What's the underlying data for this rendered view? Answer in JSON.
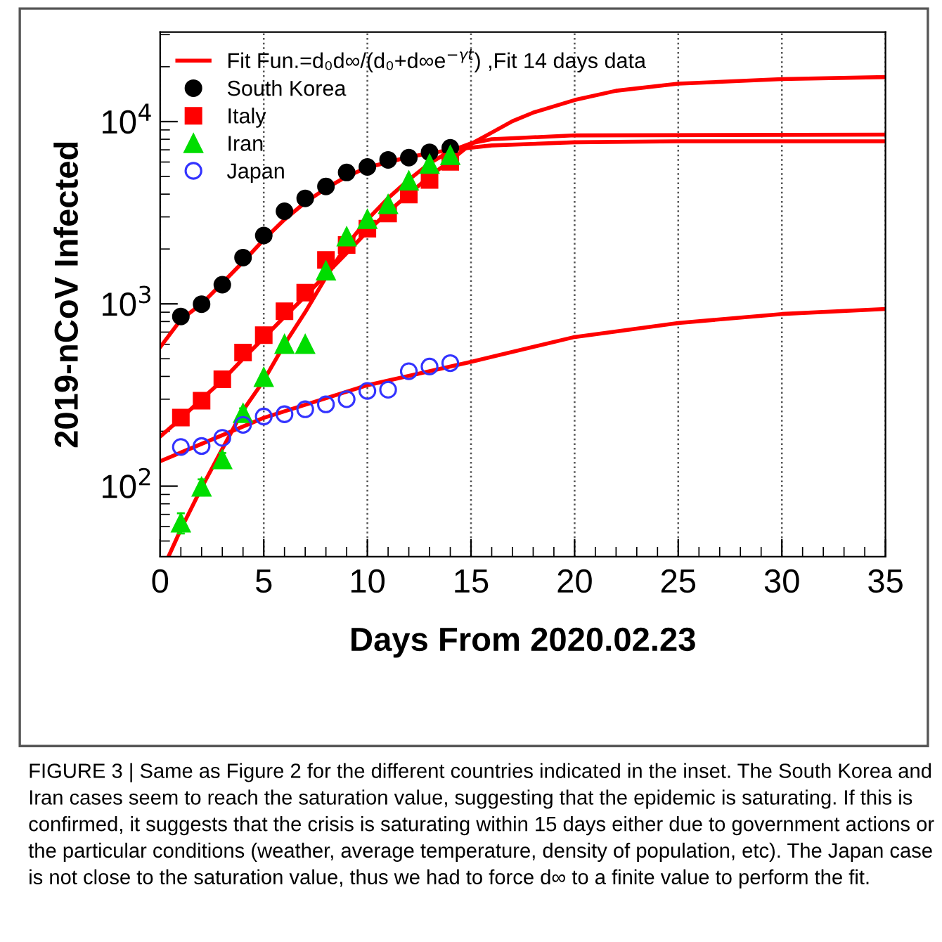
{
  "chart_data": {
    "type": "scatter",
    "xlabel": "Days From 2020.02.23",
    "ylabel": "2019-nCoV Infected",
    "log": "y",
    "xlim": [
      0,
      35
    ],
    "ylim": [
      41,
      31000
    ],
    "xticks": [
      0,
      5,
      10,
      15,
      20,
      25,
      30,
      35
    ],
    "yticks": [
      {
        "value": 100,
        "label": "10$^{2}$"
      },
      {
        "value": 1000,
        "label": "10$^{3}$"
      },
      {
        "value": 10000,
        "label": "10$^{4}$"
      }
    ],
    "grid": "x",
    "legend": "top left",
    "series": [
      {
        "name": "Fit Fun.=d₀d∞/(d₀+d∞e$^{−γt}$) ,Fit 14 days data",
        "type": "line",
        "color": "#ff0000",
        "marker": "none",
        "x": [
          0,
          1,
          2,
          3,
          4,
          5,
          6,
          7,
          8,
          9,
          10,
          12,
          14,
          16,
          20,
          25,
          35
        ],
        "values": [
          578,
          820,
          1000,
          1300,
          1700,
          2250,
          2900,
          3600,
          4300,
          5000,
          5600,
          6400,
          7000,
          7400,
          7700,
          7800,
          7800
        ]
      },
      {
        "type": "line",
        "color": "#ff0000",
        "marker": "none",
        "x": [
          0,
          1,
          2,
          3,
          4,
          5,
          6,
          7,
          8,
          9,
          10,
          11,
          12,
          13,
          14,
          15,
          16,
          17,
          18,
          20,
          22,
          25,
          30,
          35
        ],
        "values": [
          187,
          235,
          300,
          380,
          500,
          650,
          850,
          1100,
          1450,
          1900,
          2500,
          3200,
          4000,
          5000,
          6100,
          7540,
          8700,
          10050,
          11200,
          13130,
          14760,
          16140,
          17100,
          17550
        ]
      },
      {
        "type": "line",
        "color": "#ff0000",
        "marker": "none",
        "x": [
          0.4,
          1,
          2,
          3,
          4,
          5,
          6,
          7,
          8,
          9,
          10,
          11,
          12,
          13,
          14,
          15,
          16,
          20,
          35
        ],
        "values": [
          41,
          58,
          98,
          160,
          260,
          380,
          600,
          900,
          1400,
          2100,
          2900,
          3800,
          4800,
          5900,
          6900,
          7600,
          8000,
          8400,
          8480
        ]
      },
      {
        "type": "line",
        "color": "#ff0000",
        "marker": "none",
        "x": [
          0,
          5,
          10,
          15,
          20,
          25,
          30,
          35
        ],
        "values": [
          137,
          237,
          358,
          481,
          658,
          785,
          880,
          937
        ]
      },
      {
        "name": "South Korea",
        "color": "#000000",
        "marker": "circle",
        "x": [
          1,
          2,
          3,
          4,
          5,
          6,
          7,
          8,
          9,
          10,
          11,
          12,
          13,
          14
        ],
        "values": [
          853,
          996,
          1274,
          1795,
          2372,
          3222,
          3793,
          4407,
          5260,
          5638,
          6165,
          6342,
          6783,
          7180
        ]
      },
      {
        "name": "Italy",
        "color": "#ff0000",
        "marker": "square",
        "x": [
          1,
          2,
          3,
          4,
          5,
          6,
          7,
          8,
          9,
          10,
          11,
          12,
          13,
          14
        ],
        "values": [
          238,
          294,
          386,
          541,
          673,
          910,
          1152,
          1743,
          2105,
          2588,
          3128,
          3981,
          4779,
          6011
        ]
      },
      {
        "name": "Iran",
        "color": "#00dd00",
        "marker": "triangle",
        "x": [
          1,
          2,
          3,
          4,
          5,
          6,
          7,
          8,
          9,
          10,
          11,
          12,
          13,
          14
        ],
        "values": [
          63,
          99,
          140,
          251,
          396,
          601,
          601,
          1521,
          2339,
          2910,
          3516,
          4732,
          5850,
          6536
        ],
        "errors": [
          8,
          10,
          12,
          16,
          null,
          null,
          null,
          null,
          null,
          null,
          null,
          null,
          null,
          null
        ]
      },
      {
        "name": "Japan",
        "color": "#3333ff",
        "marker": "circle",
        "x": [
          1,
          2,
          3,
          4,
          5,
          6,
          7,
          8,
          9,
          10,
          11,
          12,
          13,
          14
        ],
        "values": [
          164,
          166,
          184,
          217,
          241,
          248,
          264,
          281,
          300,
          333,
          338,
          427,
          453,
          473
        ]
      }
    ],
    "annotations": [
      "FIGURE 3 | Same as Figure 2 for the different countries indicated in the inset. The South Korea and Iran cases seem to reach the saturation value, suggesting that the epidemic is saturating. If this is confirmed, it suggests that the crisis is saturating within 15 days either due to government actions or the particular conditions (weather, average temperature, density of population, etc). The Japan case is not close to the saturation value, thus we had to force d∞ to a finite value to perform the fit."
    ]
  }
}
